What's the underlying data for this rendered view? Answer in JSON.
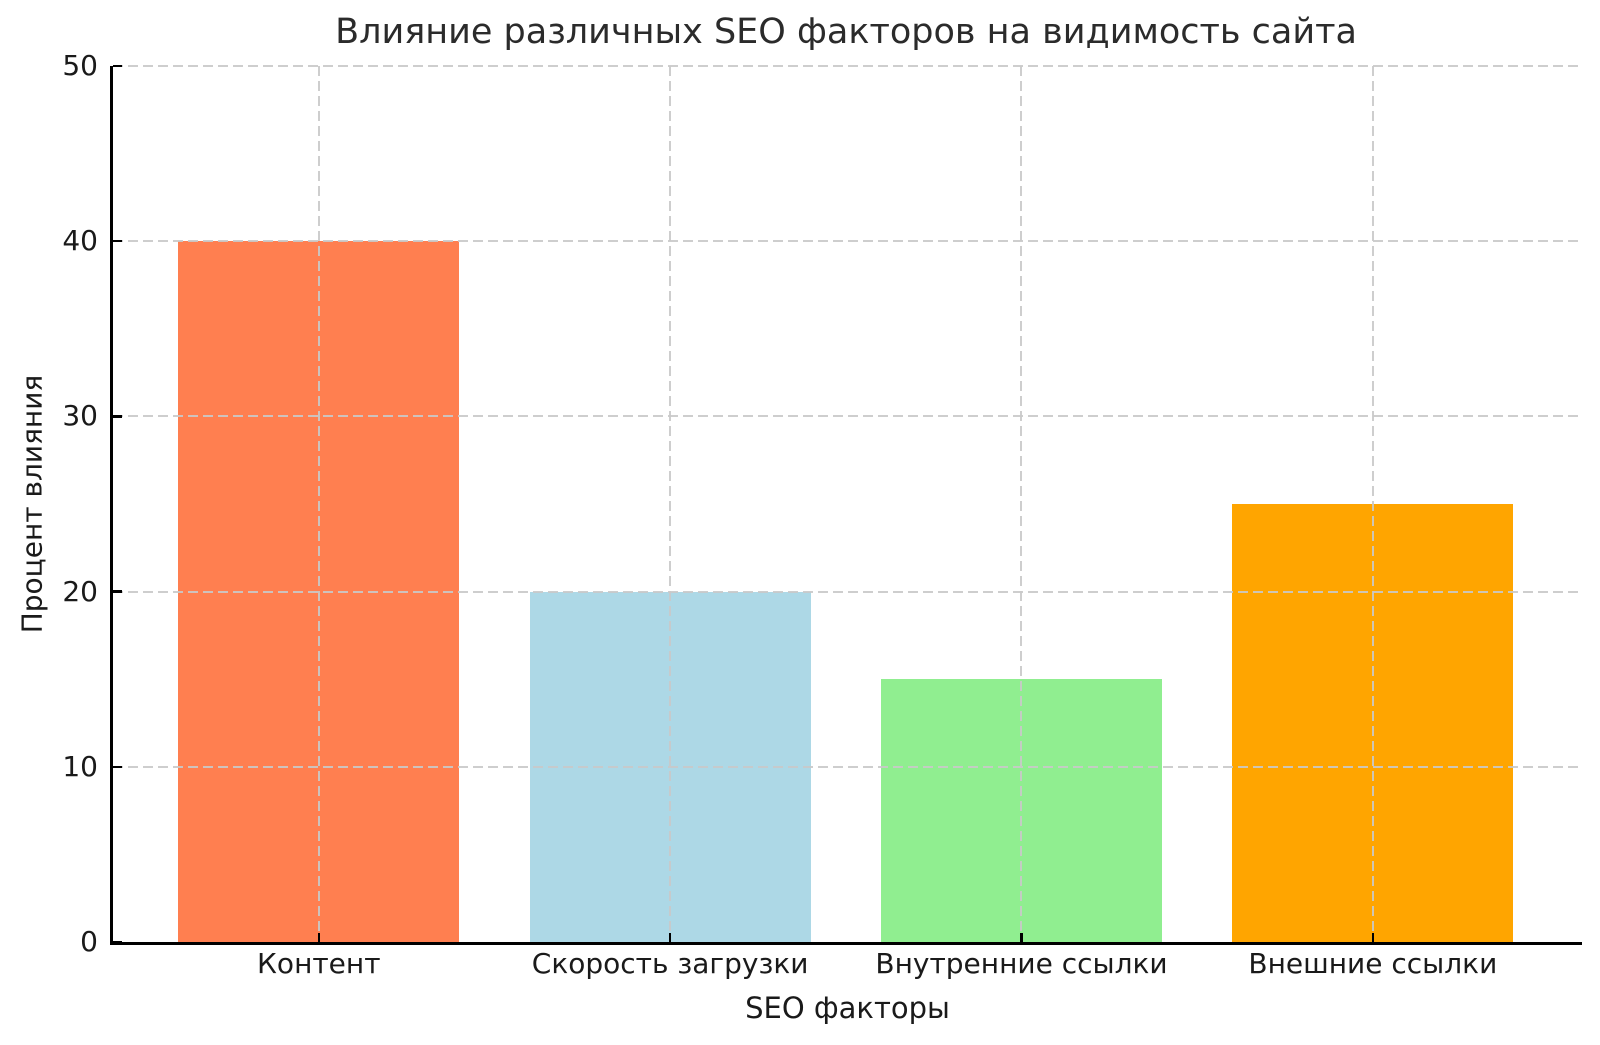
{
  "chart_data": {
    "type": "bar",
    "title": "Влияние различных SEO факторов на видимость сайта",
    "xlabel": "SEO факторы",
    "ylabel": "Процент влияния",
    "categories": [
      "Контент",
      "Скорость загрузки",
      "Внутренние ссылки",
      "Внешние ссылки"
    ],
    "values": [
      40,
      20,
      15,
      25
    ],
    "bar_colors": [
      "#FF7F50",
      "#ADD8E6",
      "#90EE90",
      "#FFA500"
    ],
    "ylim": [
      0,
      50
    ],
    "yticks": [
      0,
      10,
      20,
      30,
      40,
      50
    ],
    "grid": "dashed gray, horizontal and vertical, drawn above bars",
    "legend_position": "none"
  },
  "style_colors": {
    "grid": "#c9c9c9",
    "spine": "#000000",
    "text": "#1a1a1a",
    "background": "#ffffff"
  }
}
